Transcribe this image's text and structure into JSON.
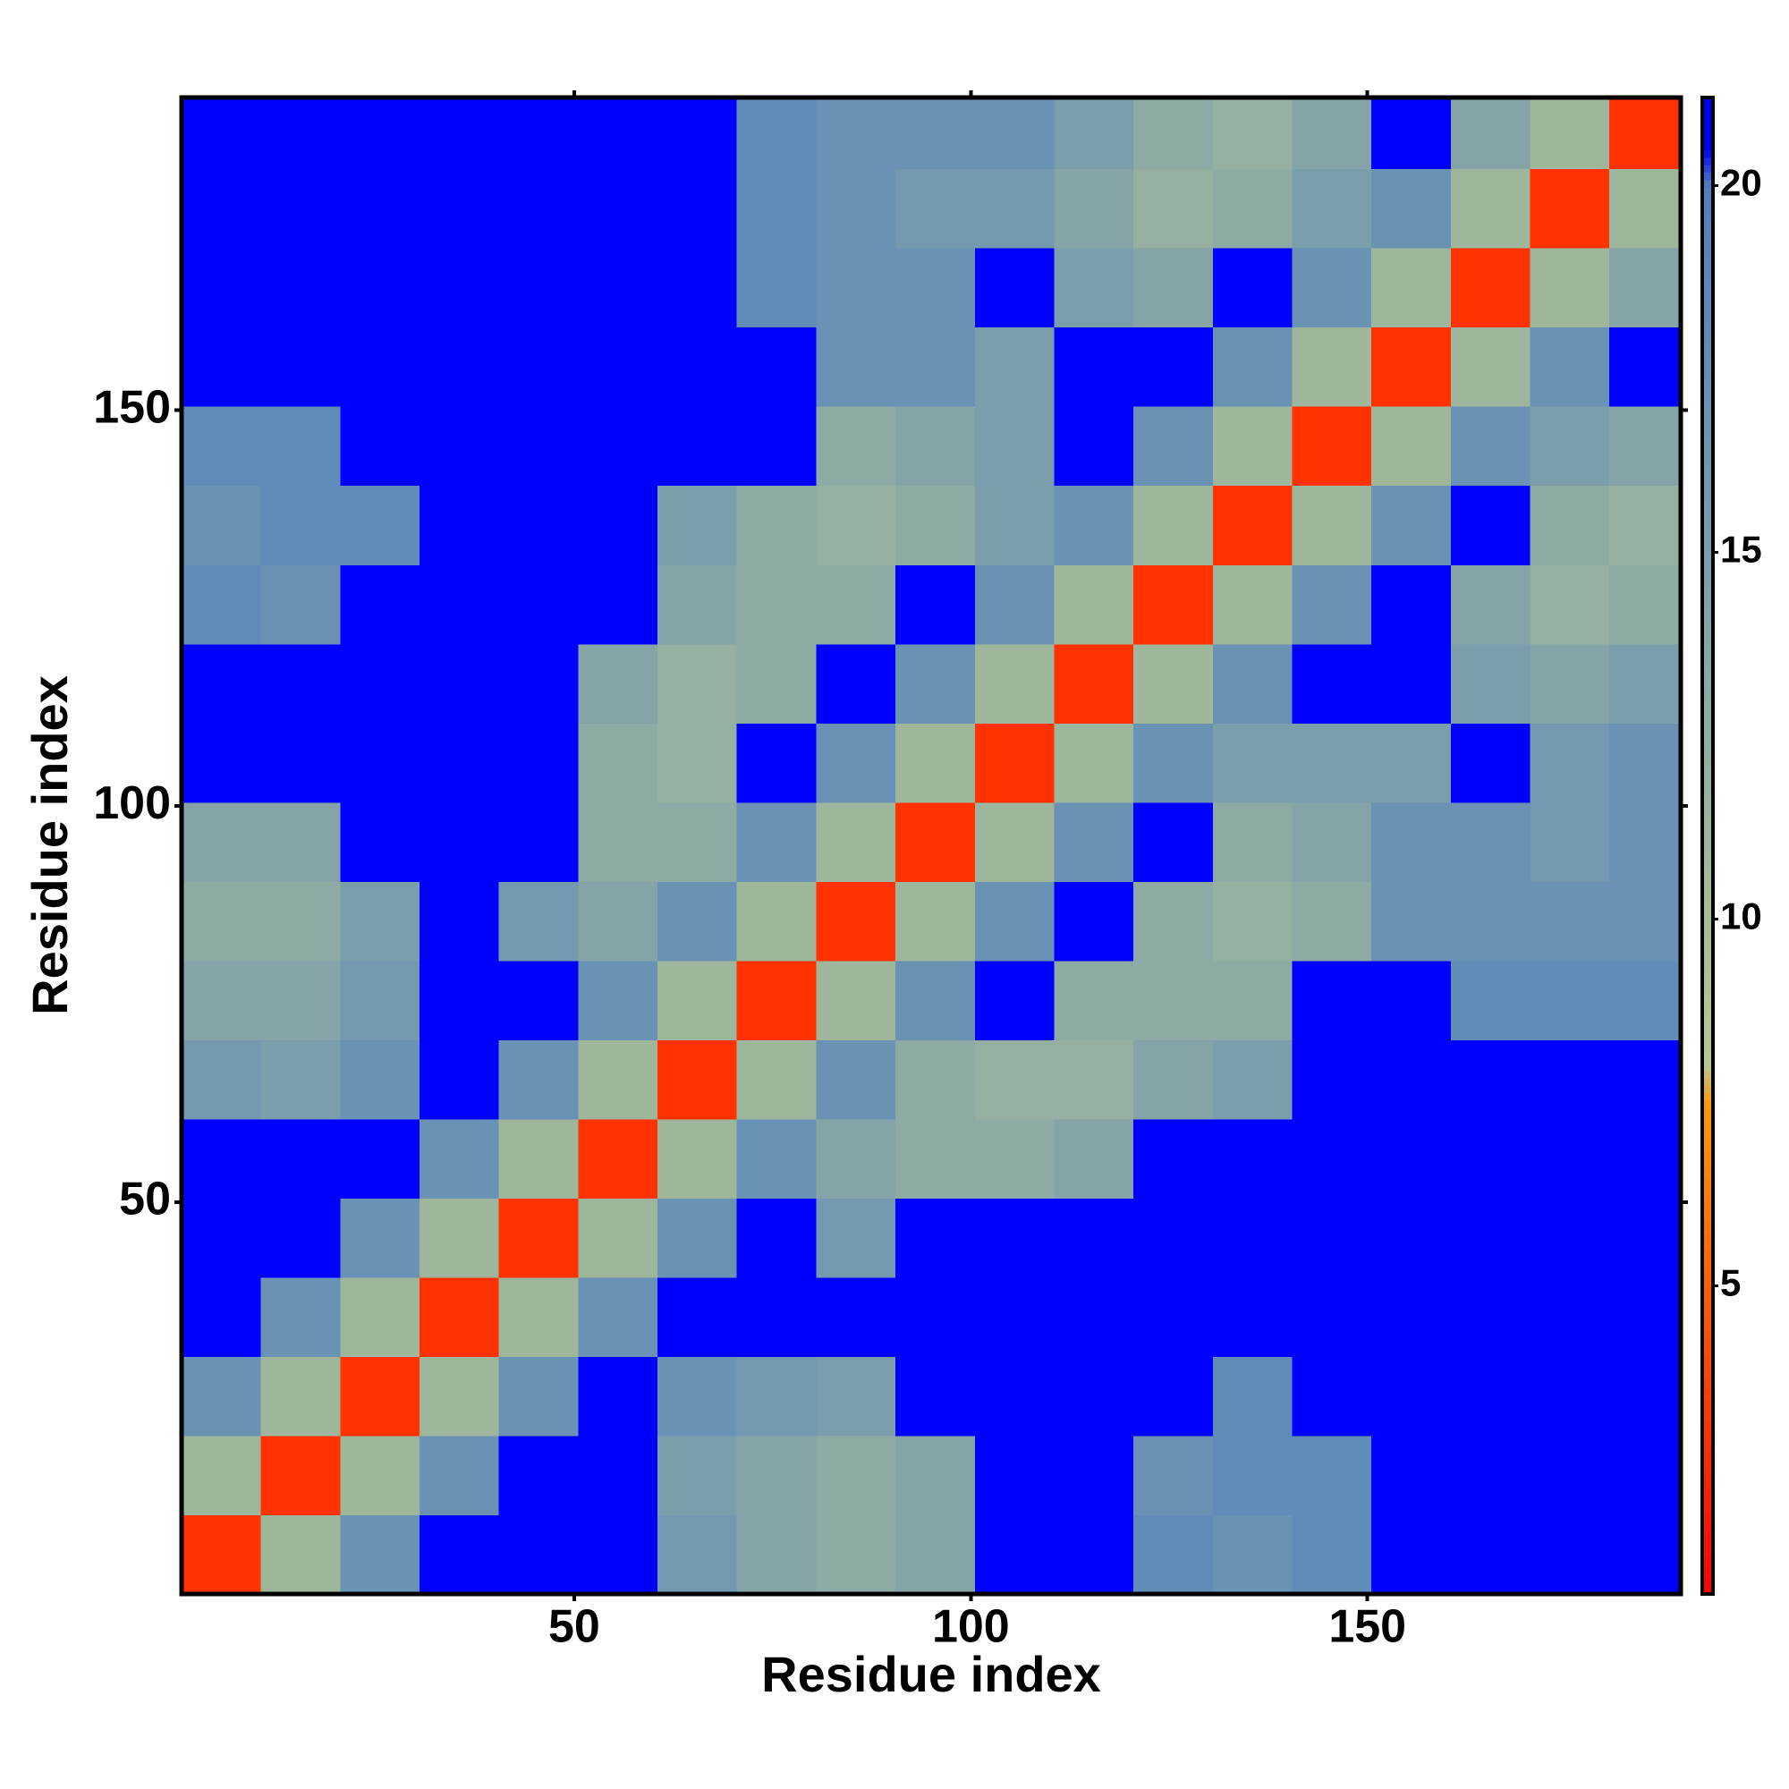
{
  "chart_data": {
    "type": "heatmap",
    "xlabel": "Residue index",
    "ylabel": "Residue index",
    "bins": [
      0.5,
      10.5,
      20.5,
      30.5,
      40.5,
      50.5,
      60.5,
      70.5,
      80.5,
      90.5,
      100.5,
      110.5,
      120.5,
      130.5,
      140.5,
      150.5,
      160.5,
      170.5,
      180.5,
      189.5
    ],
    "xlim": [
      0.5,
      189.5
    ],
    "ylim": [
      0.5,
      189.5
    ],
    "xticks": [
      50,
      100,
      150
    ],
    "yticks": [
      50,
      100,
      150
    ],
    "z": [
      [
        3,
        11,
        17,
        21,
        21,
        21,
        16,
        14,
        13,
        14,
        21,
        21,
        18,
        17,
        18,
        21,
        21,
        21,
        21
      ],
      [
        11,
        3,
        11,
        17,
        21,
        21,
        15,
        14,
        13,
        14,
        21,
        21,
        17,
        18,
        18,
        21,
        21,
        21,
        21
      ],
      [
        17,
        11,
        3,
        11,
        17,
        21,
        17,
        16,
        15,
        21,
        21,
        21,
        21,
        18,
        21,
        21,
        21,
        21,
        21
      ],
      [
        21,
        17,
        11,
        3,
        11,
        17,
        21,
        21,
        21,
        21,
        21,
        21,
        21,
        21,
        21,
        21,
        21,
        21,
        21
      ],
      [
        21,
        21,
        17,
        11,
        3,
        11,
        17,
        21,
        16,
        21,
        21,
        21,
        21,
        21,
        21,
        21,
        21,
        21,
        21
      ],
      [
        21,
        21,
        21,
        17,
        11,
        3,
        11,
        17,
        14,
        13,
        13,
        14,
        21,
        21,
        21,
        21,
        21,
        21,
        21
      ],
      [
        16,
        15,
        17,
        21,
        17,
        11,
        3,
        11,
        17,
        13,
        12,
        12,
        14,
        15,
        21,
        21,
        21,
        21,
        21
      ],
      [
        14,
        14,
        16,
        21,
        21,
        17,
        11,
        3,
        11,
        17,
        21,
        13,
        13,
        13,
        21,
        21,
        18,
        18,
        18
      ],
      [
        13,
        13,
        15,
        21,
        16,
        14,
        17,
        11,
        3,
        11,
        17,
        21,
        13,
        12,
        13,
        17,
        17,
        17,
        17
      ],
      [
        14,
        14,
        21,
        21,
        21,
        13,
        13,
        17,
        11,
        3,
        11,
        17,
        21,
        13,
        14,
        17,
        17,
        16,
        17
      ],
      [
        21,
        21,
        21,
        21,
        21,
        13,
        12,
        21,
        17,
        11,
        3,
        11,
        17,
        15,
        15,
        15,
        21,
        16,
        17
      ],
      [
        21,
        21,
        21,
        21,
        21,
        14,
        12,
        13,
        21,
        17,
        11,
        3,
        11,
        17,
        21,
        21,
        15,
        14,
        15
      ],
      [
        18,
        17,
        21,
        21,
        21,
        21,
        14,
        13,
        13,
        21,
        17,
        11,
        3,
        11,
        17,
        21,
        14,
        12,
        13
      ],
      [
        17,
        18,
        18,
        21,
        21,
        21,
        15,
        13,
        12,
        13,
        15,
        17,
        11,
        3,
        11,
        17,
        21,
        13,
        12
      ],
      [
        18,
        18,
        21,
        21,
        21,
        21,
        21,
        21,
        13,
        14,
        15,
        21,
        17,
        11,
        3,
        11,
        17,
        15,
        14
      ],
      [
        21,
        21,
        21,
        21,
        21,
        21,
        21,
        21,
        17,
        17,
        15,
        21,
        21,
        17,
        11,
        3,
        11,
        17,
        21
      ],
      [
        21,
        21,
        21,
        21,
        21,
        21,
        21,
        18,
        17,
        17,
        21,
        15,
        14,
        21,
        17,
        11,
        3,
        11,
        14
      ],
      [
        21,
        21,
        21,
        21,
        21,
        21,
        21,
        18,
        17,
        16,
        16,
        14,
        12,
        13,
        15,
        17,
        11,
        3,
        11
      ],
      [
        21,
        21,
        21,
        21,
        21,
        21,
        21,
        18,
        17,
        17,
        17,
        15,
        13,
        12,
        14,
        21,
        14,
        11,
        3
      ]
    ],
    "colorbar": {
      "lim": [
        0.8,
        21.2
      ],
      "ticks": [
        5,
        10,
        15,
        20
      ]
    },
    "colorscale": [
      [
        0.8,
        "#ff0000"
      ],
      [
        7.5,
        "#ff9900"
      ],
      [
        8,
        "#b8c890"
      ],
      [
        20,
        "#5080c0"
      ],
      [
        20.5,
        "#0000ff"
      ],
      [
        21.2,
        "#0000ff"
      ]
    ]
  }
}
